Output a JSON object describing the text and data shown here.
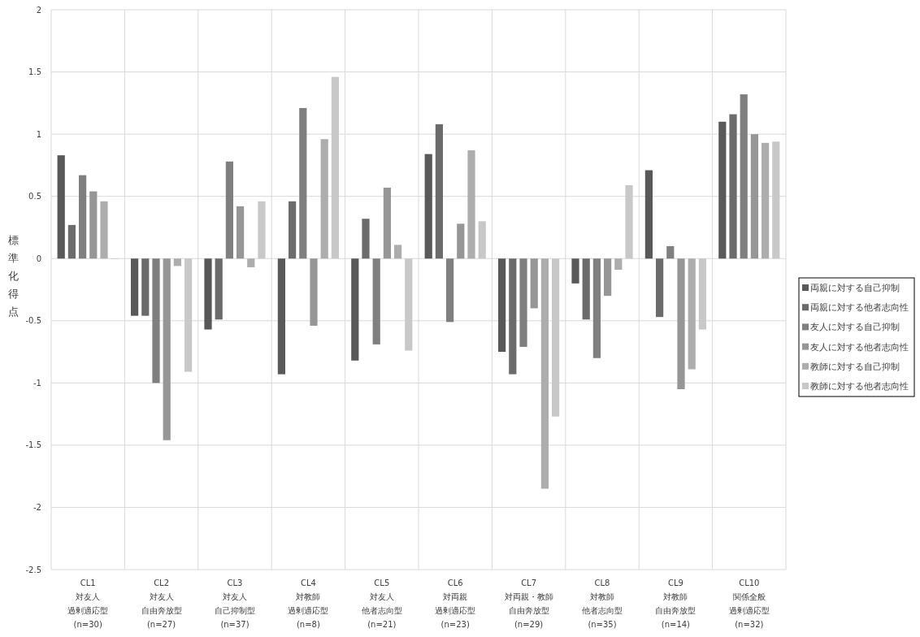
{
  "chart_data": {
    "type": "bar",
    "ylabel": "標準化得点",
    "categories": [
      "CL1\n対友人過剰適応型\n(n=30)",
      "CL2\n対友人自由奔放型\n(n=27)",
      "CL3\n対友人自己抑制型\n(n=37)",
      "CL4\n対教師過剰適応型\n(n=8)",
      "CL5\n対友人他者志向型\n(n=21)",
      "CL6\n対両親過剰適応型\n(n=23)",
      "CL7\n対両親・教師自由奔放型\n(n=29)",
      "CL8\n対教師他者志向型\n(n=35)",
      "CL9\n対教師自由奔放型\n(n=14)",
      "CL10\n関係全般過剰適応型\n(n=32)"
    ],
    "series": [
      {
        "name": "両親に対する自己抑制",
        "color": "#595959",
        "values": [
          0.83,
          -0.46,
          -0.57,
          -0.93,
          -0.82,
          0.84,
          -0.75,
          -0.2,
          0.71,
          1.1
        ]
      },
      {
        "name": "両親に対する他者志向性",
        "color": "#6b6b6b",
        "values": [
          0.27,
          -0.46,
          -0.49,
          0.46,
          0.32,
          1.08,
          -0.93,
          -0.49,
          -0.47,
          1.16
        ]
      },
      {
        "name": "友人に対する自己抑制",
        "color": "#7f7f7f",
        "values": [
          0.67,
          -1.0,
          0.78,
          1.21,
          -0.69,
          -0.51,
          -0.71,
          -0.8,
          0.1,
          1.32
        ]
      },
      {
        "name": "友人に対する他者志向性",
        "color": "#969696",
        "values": [
          0.54,
          -1.46,
          0.42,
          -0.54,
          0.57,
          0.28,
          -0.4,
          -0.3,
          -1.05,
          1.0
        ]
      },
      {
        "name": "教師に対する自己抑制",
        "color": "#adadad",
        "values": [
          0.46,
          -0.06,
          -0.07,
          0.96,
          0.11,
          0.87,
          -1.85,
          -0.09,
          -0.89,
          0.93
        ]
      },
      {
        "name": "教師に対する他者志向性",
        "color": "#c8c8c8",
        "values": [
          0.0,
          -0.91,
          0.46,
          1.46,
          -0.74,
          0.3,
          -1.27,
          0.59,
          -0.57,
          0.94
        ]
      }
    ],
    "ylim": [
      -2.5,
      2
    ],
    "yticks": [
      -2.5,
      -2,
      -1.5,
      -1,
      -0.5,
      0,
      0.5,
      1,
      1.5,
      2
    ],
    "grid": true,
    "legend": "right"
  }
}
